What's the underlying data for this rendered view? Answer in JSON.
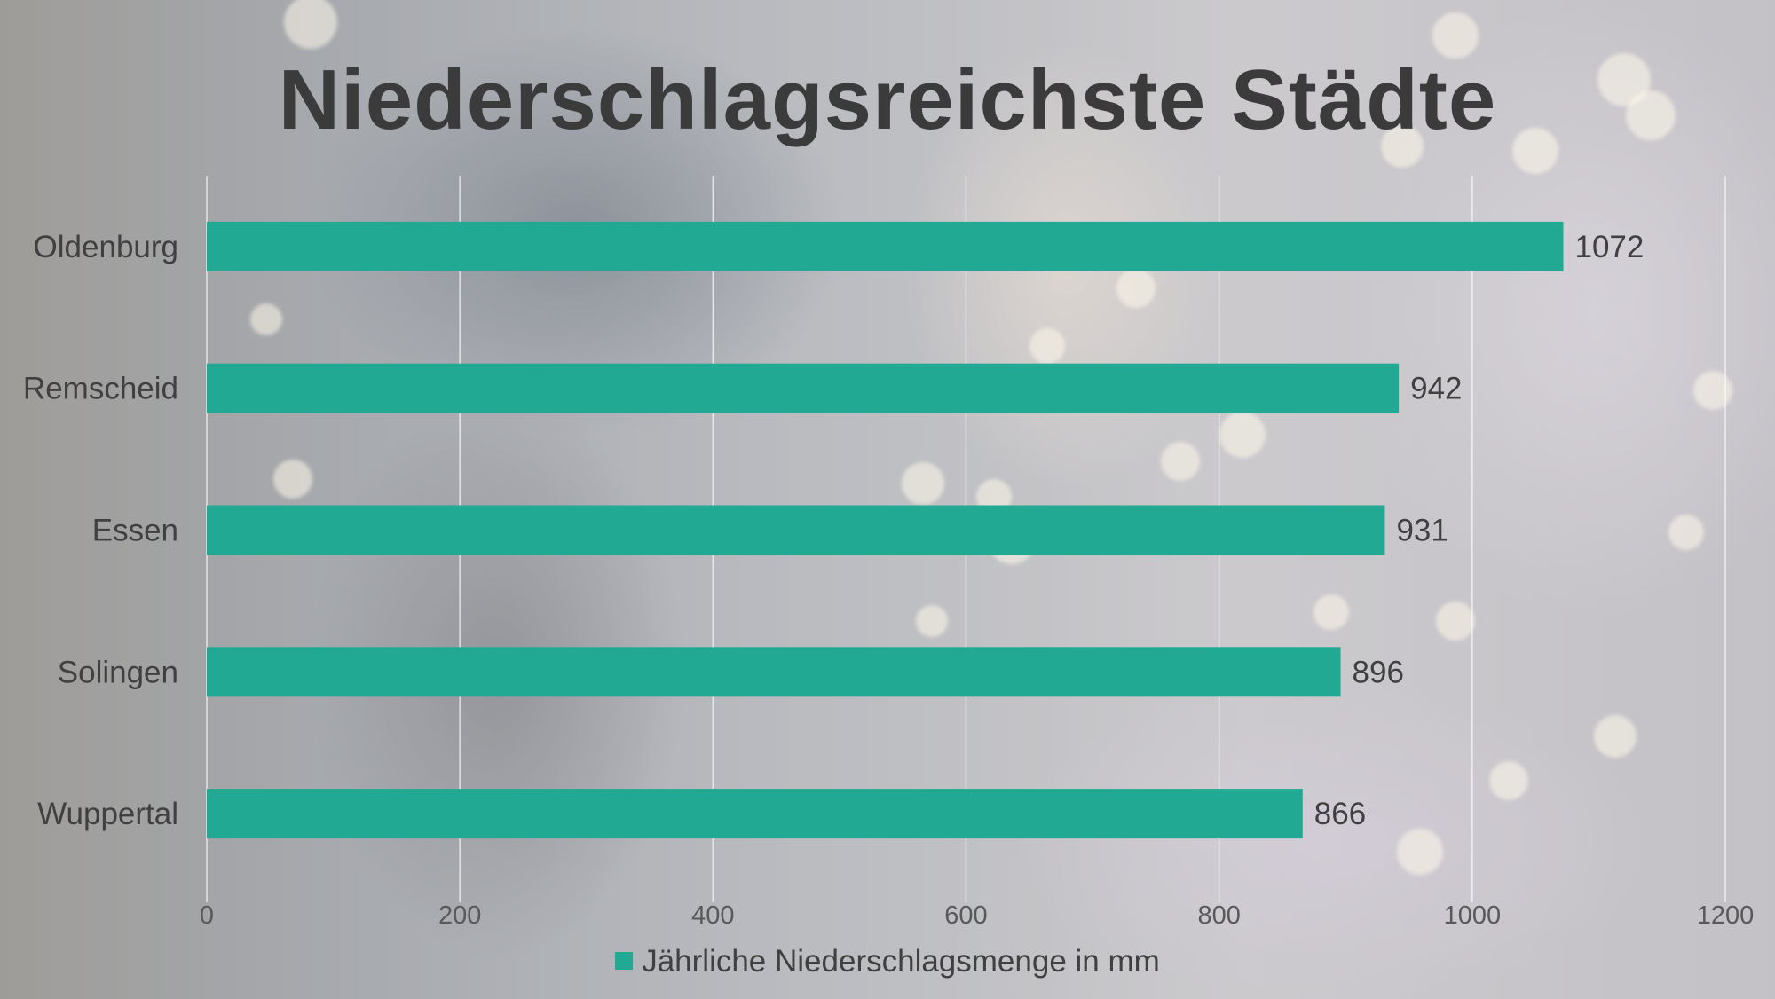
{
  "chart_data": {
    "type": "bar",
    "orientation": "horizontal",
    "title": "Niederschlagsreichste Städte",
    "categories": [
      "Oldenburg",
      "Remscheid",
      "Essen",
      "Solingen",
      "Wuppertal"
    ],
    "series": [
      {
        "name": "Jährliche Niederschlagsmenge in mm",
        "values": [
          1072,
          942,
          931,
          896,
          866
        ]
      }
    ],
    "xlim": [
      0,
      1200
    ],
    "x_ticks": [
      "0",
      "200",
      "400",
      "600",
      "800",
      "1000",
      "1200"
    ],
    "grid": true,
    "data_labels": true,
    "legend_position": "bottom",
    "bar_color": "#21a993"
  }
}
